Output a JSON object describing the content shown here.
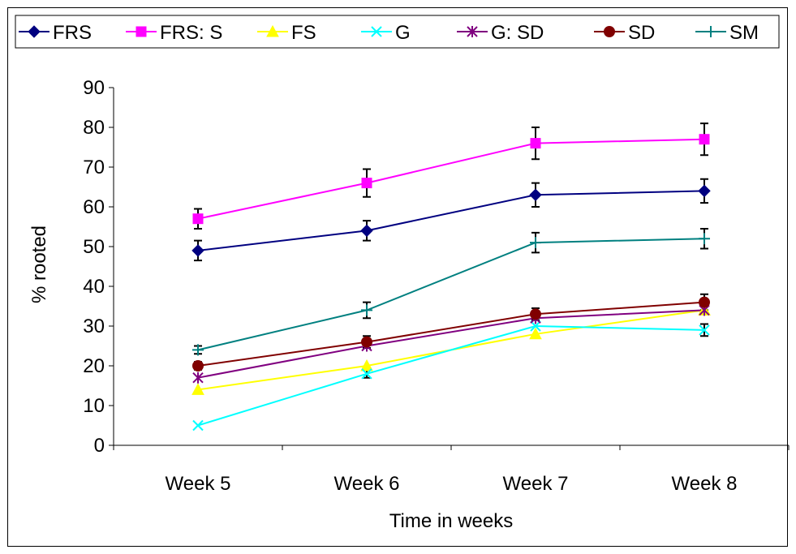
{
  "chart_data": {
    "type": "line",
    "categories": [
      "Week 5",
      "Week 6",
      "Week 7",
      "Week 8"
    ],
    "xlabel": "Time in weeks",
    "ylabel": "% rooted",
    "ylim": [
      0,
      90
    ],
    "yticks": [
      0,
      10,
      20,
      30,
      40,
      50,
      60,
      70,
      80,
      90
    ],
    "legend_position": "top",
    "grid": false,
    "series": [
      {
        "name": "FRS",
        "color": "#000080",
        "marker": "diamond",
        "values": [
          49,
          54,
          63,
          64
        ],
        "errors": [
          2.5,
          2.5,
          3,
          3
        ]
      },
      {
        "name": "FRS: S",
        "color": "#ff00ff",
        "marker": "square",
        "values": [
          57,
          66,
          76,
          77
        ],
        "errors": [
          2.5,
          3.5,
          4,
          4
        ]
      },
      {
        "name": "FS",
        "color": "#ffff00",
        "marker": "triangle",
        "values": [
          14,
          20,
          28,
          34
        ],
        "errors": [
          null,
          null,
          null,
          null
        ]
      },
      {
        "name": "G",
        "color": "#00ffff",
        "marker": "x",
        "values": [
          5,
          18,
          30,
          29
        ],
        "errors": [
          null,
          1,
          null,
          1.5
        ]
      },
      {
        "name": "G: SD",
        "color": "#800080",
        "marker": "star",
        "values": [
          17,
          25,
          32,
          34
        ],
        "errors": [
          null,
          null,
          null,
          null
        ]
      },
      {
        "name": "SD",
        "color": "#800000",
        "marker": "circle",
        "values": [
          20,
          26,
          33,
          36
        ],
        "errors": [
          1,
          1.5,
          1.5,
          2
        ]
      },
      {
        "name": "SM",
        "color": "#008080",
        "marker": "plus",
        "values": [
          24,
          34,
          51,
          52
        ],
        "errors": [
          1,
          2,
          2.5,
          2.5
        ]
      }
    ]
  }
}
